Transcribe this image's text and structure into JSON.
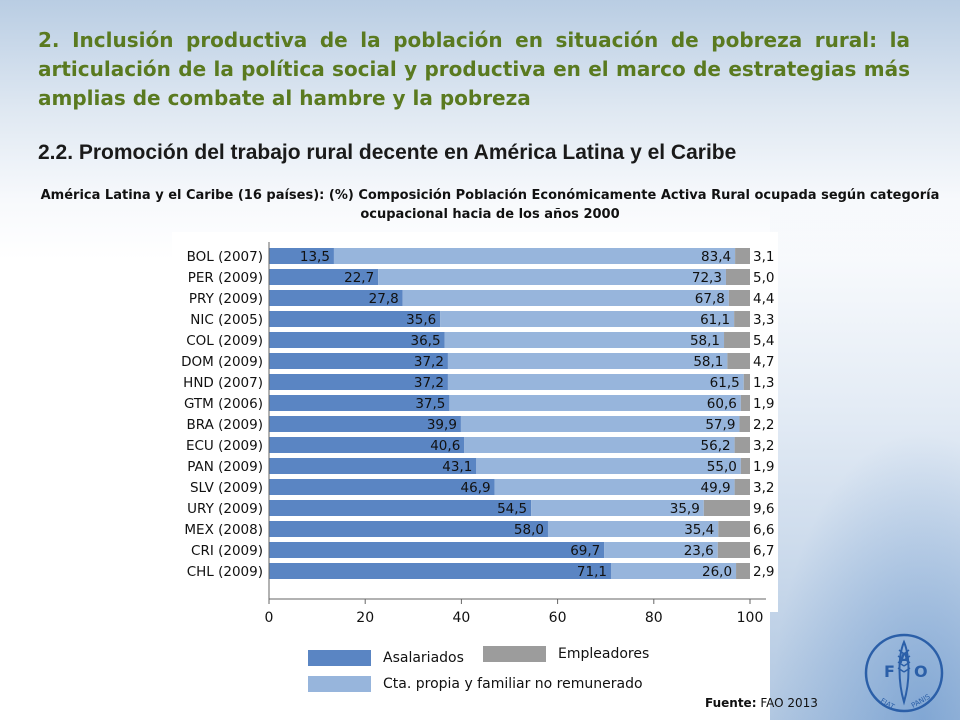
{
  "header": {
    "title": "2. Inclusión productiva de la población en situación de pobreza rural: la articulación de la política social y productiva en el marco de estrategias más amplias de combate al hambre y la pobreza",
    "subtitle": "2.2. Promoción del trabajo rural decente en América Latina y el Caribe"
  },
  "chart_data": {
    "type": "bar",
    "orientation": "horizontal",
    "stacked": true,
    "title": "América Latina y el Caribe  (16 países): (%) Composición Población Económicamente Activa Rural ocupada según categoría ocupacional hacia de los años 2000",
    "categories": [
      "BOL (2007)",
      "PER (2009)",
      "PRY (2009)",
      "NIC (2005)",
      "COL (2009)",
      "DOM (2009)",
      "HND (2007)",
      "GTM (2006)",
      "BRA (2009)",
      "ECU (2009)",
      "PAN (2009)",
      "SLV (2009)",
      "URY (2009)",
      "MEX (2008)",
      "CRI (2009)",
      "CHL (2009)"
    ],
    "series": [
      {
        "name": "Asalariados",
        "color": "#5a85c3",
        "values": [
          13.5,
          22.7,
          27.8,
          35.6,
          36.5,
          37.2,
          37.2,
          37.5,
          39.9,
          40.6,
          43.1,
          46.9,
          54.5,
          58.0,
          69.7,
          71.1
        ],
        "labels": [
          "13,5",
          "22,7",
          "27,8",
          "35,6",
          "36,5",
          "37,2",
          "37,2",
          "37,5",
          "39,9",
          "40,6",
          "43,1",
          "46,9",
          "54,5",
          "58,0",
          "69,7",
          "71,1"
        ]
      },
      {
        "name": "Cta. propia y familiar no remunerado",
        "color": "#97b5dc",
        "values": [
          83.4,
          72.3,
          67.8,
          61.1,
          58.1,
          58.1,
          61.5,
          60.6,
          57.9,
          56.2,
          55.0,
          49.9,
          35.9,
          35.4,
          23.6,
          26.0
        ],
        "labels": [
          "83,4",
          "72,3",
          "67,8",
          "61,1",
          "58,1",
          "58,1",
          "61,5",
          "60,6",
          "57,9",
          "56,2",
          "55,0",
          "49,9",
          "35,9",
          "35,4",
          "23,6",
          "26,0"
        ]
      },
      {
        "name": "Empleadores",
        "color": "#9c9c9c",
        "values": [
          3.1,
          5.0,
          4.4,
          3.3,
          5.4,
          4.7,
          1.3,
          1.9,
          2.2,
          3.2,
          1.9,
          3.2,
          9.6,
          6.6,
          6.7,
          2.9
        ],
        "labels": [
          "3,1",
          "5,0",
          "4,4",
          "3,3",
          "5,4",
          "4,7",
          "1,3",
          "1,9",
          "2,2",
          "3,2",
          "1,9",
          "3,2",
          "9,6",
          "6,6",
          "6,7",
          "2,9"
        ]
      }
    ],
    "x_ticks": [
      "0",
      "20",
      "40",
      "60",
      "80",
      "100"
    ],
    "xlim": [
      0,
      100
    ],
    "legend_placement": "bottom",
    "grid": false
  },
  "legend": {
    "asalariados": "Asalariados",
    "empleadores": "Empleadores",
    "cuenta_propia": "Cta. propia y familiar no remunerado"
  },
  "source": {
    "label": "Fuente:",
    "text": " FAO 2013"
  },
  "logo": {
    "letters": [
      "F",
      "A",
      "O"
    ],
    "motto_left": "FIAT",
    "motto_right": "PANIS"
  }
}
